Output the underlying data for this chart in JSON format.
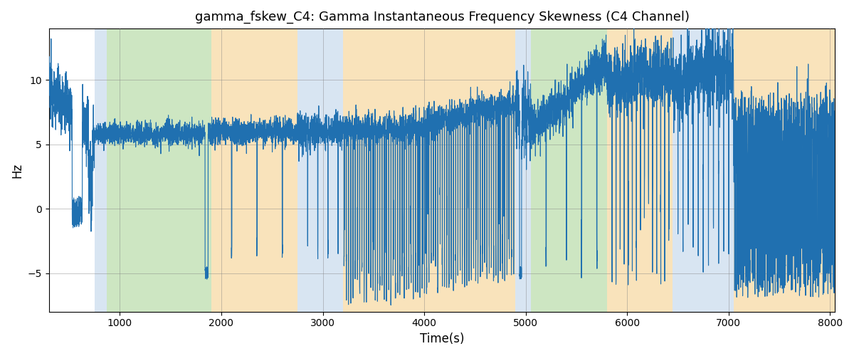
{
  "title": "gamma_fskew_C4: Gamma Instantaneous Frequency Skewness (C4 Channel)",
  "xlabel": "Time(s)",
  "ylabel": "Hz",
  "xlim": [
    300,
    8050
  ],
  "ylim": [
    -8,
    14
  ],
  "line_color": "#2070b0",
  "line_width": 0.8,
  "background_color": "#ffffff",
  "bands": [
    {
      "xmin": 750,
      "xmax": 870,
      "color": "#b8d0e8",
      "alpha": 0.55
    },
    {
      "xmin": 870,
      "xmax": 1900,
      "color": "#90c878",
      "alpha": 0.45
    },
    {
      "xmin": 1900,
      "xmax": 2750,
      "color": "#f5c878",
      "alpha": 0.5
    },
    {
      "xmin": 2750,
      "xmax": 3200,
      "color": "#b8d0e8",
      "alpha": 0.55
    },
    {
      "xmin": 3200,
      "xmax": 4900,
      "color": "#f5c878",
      "alpha": 0.5
    },
    {
      "xmin": 4900,
      "xmax": 5050,
      "color": "#b8d0e8",
      "alpha": 0.55
    },
    {
      "xmin": 5050,
      "xmax": 5800,
      "color": "#90c878",
      "alpha": 0.45
    },
    {
      "xmin": 5800,
      "xmax": 6450,
      "color": "#f5c878",
      "alpha": 0.5
    },
    {
      "xmin": 6450,
      "xmax": 7050,
      "color": "#b8d0e8",
      "alpha": 0.55
    },
    {
      "xmin": 7050,
      "xmax": 8050,
      "color": "#f5c878",
      "alpha": 0.5
    }
  ],
  "yticks": [
    -5,
    0,
    5,
    10
  ],
  "xticks": [
    1000,
    2000,
    3000,
    4000,
    5000,
    6000,
    7000,
    8000
  ]
}
